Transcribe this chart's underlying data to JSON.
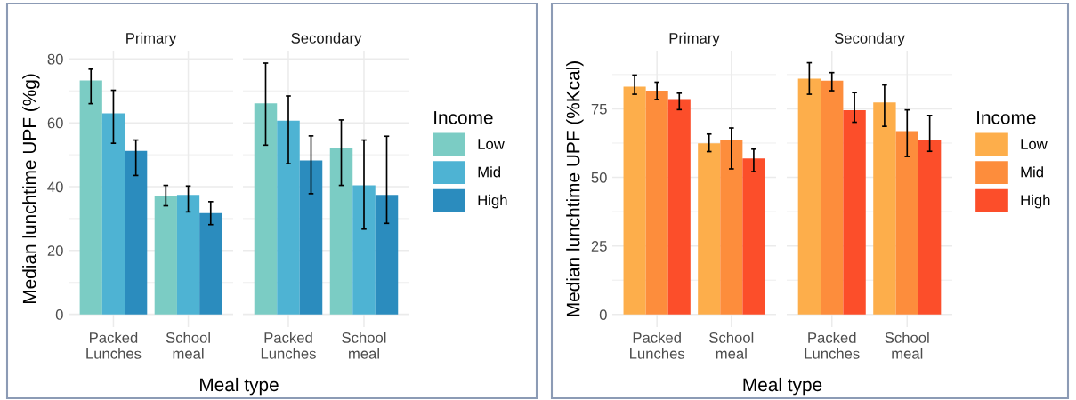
{
  "chart_data": [
    {
      "type": "bar",
      "title": "Primary",
      "ylabel": "Median lunchtime UPF (%g)",
      "xlabel": "Meal type",
      "categories": [
        "Packed\nLunches",
        "School\nmeal"
      ],
      "ylim": [
        -4,
        82.6
      ],
      "yticks": [
        0,
        20,
        40,
        60,
        80
      ],
      "grid": true,
      "series": [
        {
          "color": "#7bccc4",
          "values": [
            73.3,
            37.2
          ],
          "errors": [
            [
              66.0,
              76.8
            ],
            [
              34.0,
              40.4
            ]
          ]
        },
        {
          "color": "#4eb3d3",
          "values": [
            63.0,
            37.4
          ],
          "errors": [
            [
              53.6,
              70.2
            ],
            [
              32.1,
              40.2
            ]
          ]
        },
        {
          "color": "#2b8cbe",
          "values": [
            51.2,
            31.7
          ],
          "errors": [
            [
              43.5,
              54.6
            ],
            [
              28.1,
              35.3
            ]
          ]
        }
      ]
    },
    {
      "type": "bar",
      "title": "Secondary",
      "legend_title": "Income",
      "legend": "right",
      "tick_labels": "x",
      "categories": [
        "Packed\nLunches",
        "School\nmeal"
      ],
      "ylim": [
        -4,
        82.6
      ],
      "yticks": [
        0,
        20,
        40,
        60,
        80
      ],
      "grid": true,
      "series": [
        {
          "name": "Low",
          "color": "#7bccc4",
          "values": [
            66.1,
            52.0
          ],
          "errors": [
            [
              53.0,
              78.7
            ],
            [
              40.4,
              60.9
            ]
          ]
        },
        {
          "name": "Mid",
          "color": "#4eb3d3",
          "values": [
            60.7,
            40.4
          ],
          "errors": [
            [
              47.2,
              68.4
            ],
            [
              26.7,
              54.6
            ]
          ]
        },
        {
          "name": "High",
          "color": "#2b8cbe",
          "values": [
            48.2,
            37.4
          ],
          "errors": [
            [
              37.8,
              55.9
            ],
            [
              28.5,
              55.8
            ]
          ]
        }
      ]
    },
    {
      "type": "bar",
      "title": "Primary",
      "ylabel": "Median lunchtime UPF (%Kcal)",
      "xlabel": "Meal type",
      "categories": [
        "Packed\nLunches",
        "School\nmeal"
      ],
      "ylim": [
        -4.6,
        96.2
      ],
      "yticks": [
        0,
        25,
        50,
        75
      ],
      "grid": true,
      "series": [
        {
          "color": "#fdae4b",
          "values": [
            83.1,
            62.4
          ],
          "errors": [
            [
              80.3,
              87.3
            ],
            [
              59.4,
              65.8
            ]
          ]
        },
        {
          "color": "#fd8d3c",
          "values": [
            81.6,
            63.7
          ],
          "errors": [
            [
              78.4,
              84.7
            ],
            [
              53.1,
              68.0
            ]
          ]
        },
        {
          "color": "#fc4e2a",
          "values": [
            78.5,
            56.9
          ],
          "errors": [
            [
              74.7,
              80.7
            ],
            [
              52.1,
              60.3
            ]
          ]
        }
      ]
    },
    {
      "type": "bar",
      "title": "Secondary",
      "legend_title": "Income",
      "legend": "right",
      "tick_labels": "x",
      "categories": [
        "Packed\nLunches",
        "School\nmeal"
      ],
      "ylim": [
        -4.6,
        96.2
      ],
      "yticks": [
        0,
        25,
        50,
        75
      ],
      "grid": true,
      "series": [
        {
          "name": "Low",
          "color": "#fdae4b",
          "values": [
            86.0,
            77.3
          ],
          "errors": [
            [
              80.3,
              91.8
            ],
            [
              68.6,
              83.7
            ]
          ]
        },
        {
          "name": "Mid",
          "color": "#fd8d3c",
          "values": [
            85.3,
            66.9
          ],
          "errors": [
            [
              81.6,
              88.2
            ],
            [
              57.6,
              74.6
            ]
          ]
        },
        {
          "name": "High",
          "color": "#fc4e2a",
          "values": [
            74.5,
            63.7
          ],
          "errors": [
            [
              70.1,
              80.9
            ],
            [
              59.5,
              72.6
            ]
          ]
        }
      ]
    }
  ]
}
